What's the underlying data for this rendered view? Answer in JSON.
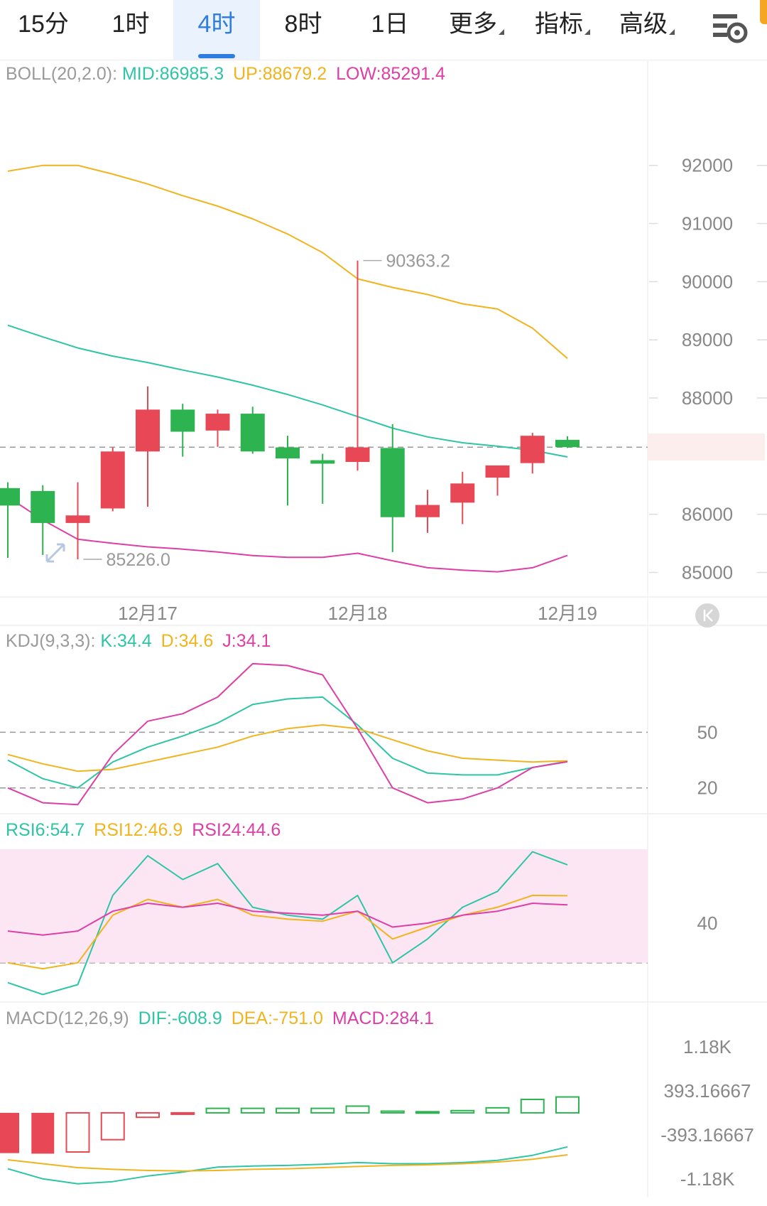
{
  "tabs": [
    {
      "label": "15分",
      "active": false,
      "dropdown": false
    },
    {
      "label": "1时",
      "active": false,
      "dropdown": false
    },
    {
      "label": "4时",
      "active": true,
      "dropdown": false
    },
    {
      "label": "8时",
      "active": false,
      "dropdown": false
    },
    {
      "label": "1日",
      "active": false,
      "dropdown": false
    },
    {
      "label": "更多",
      "active": false,
      "dropdown": true
    },
    {
      "label": "指标",
      "active": false,
      "dropdown": true
    },
    {
      "label": "高级",
      "active": false,
      "dropdown": true
    }
  ],
  "settings_icon": "chart-settings-icon",
  "colors": {
    "up": "#e84855",
    "down": "#2db451",
    "mid": "#2ec5a5",
    "upper": "#f0b41e",
    "lower": "#dd3fa6",
    "accent": "#2f7de1",
    "rsi_band": "#fde6f3",
    "axis_text": "#888888"
  },
  "legends": {
    "boll": {
      "name": "BOLL(20,2.0):",
      "mid": "MID:86985.3",
      "up": "UP:88679.2",
      "low": "LOW:85291.4"
    },
    "kdj": {
      "name": "KDJ(9,3,3):",
      "k": "K:34.4",
      "d": "D:34.6",
      "j": "J:34.1"
    },
    "rsi": {
      "r6": "RSI6:54.7",
      "r12": "RSI12:46.9",
      "r24": "RSI24:44.6"
    },
    "macd": {
      "name": "MACD(12,26,9)",
      "dif": "DIF:-608.9",
      "dea": "DEA:-751.0",
      "macd": "MACD:284.1"
    }
  },
  "chart_data": [
    {
      "type": "candlestick",
      "title": "BOLL(20,2.0)",
      "interval": "4时",
      "ylim": [
        84700,
        93500
      ],
      "y_ticks": [
        92000,
        91000,
        90000,
        89000,
        88000,
        86000,
        85000
      ],
      "x_ticks": [
        {
          "label": "12月17",
          "index": 4
        },
        {
          "label": "12月18",
          "index": 10
        },
        {
          "label": "12月19",
          "index": 16
        }
      ],
      "last_price": 87154.3,
      "annotations": [
        {
          "label": "90363.2",
          "index": 10,
          "value": 90363.2
        },
        {
          "label": "85226.0",
          "index": 2,
          "value": 85226.0
        }
      ],
      "candles": [
        {
          "o": 86450,
          "h": 86550,
          "l": 85250,
          "c": 86150
        },
        {
          "o": 86400,
          "h": 86500,
          "l": 85300,
          "c": 85850
        },
        {
          "o": 85850,
          "h": 86550,
          "l": 85226,
          "c": 85980
        },
        {
          "o": 86100,
          "h": 87150,
          "l": 86050,
          "c": 87080
        },
        {
          "o": 87080,
          "h": 88200,
          "l": 86130,
          "c": 87800
        },
        {
          "o": 87800,
          "h": 87900,
          "l": 86990,
          "c": 87420
        },
        {
          "o": 87440,
          "h": 87800,
          "l": 87160,
          "c": 87730
        },
        {
          "o": 87730,
          "h": 87850,
          "l": 87040,
          "c": 87080
        },
        {
          "o": 87150,
          "h": 87350,
          "l": 86150,
          "c": 86960
        },
        {
          "o": 86930,
          "h": 87040,
          "l": 86180,
          "c": 86870
        },
        {
          "o": 86900,
          "h": 90363.2,
          "l": 86750,
          "c": 87150
        },
        {
          "o": 87140,
          "h": 87550,
          "l": 85350,
          "c": 85950
        },
        {
          "o": 85950,
          "h": 86420,
          "l": 85680,
          "c": 86160
        },
        {
          "o": 86200,
          "h": 86730,
          "l": 85830,
          "c": 86530
        },
        {
          "o": 86630,
          "h": 86820,
          "l": 86320,
          "c": 86840
        },
        {
          "o": 86880,
          "h": 87400,
          "l": 86700,
          "c": 87350
        },
        {
          "o": 87280,
          "h": 87340,
          "l": 87140,
          "c": 87154.3
        }
      ],
      "boll_up": [
        91900,
        92000,
        92000,
        91850,
        91680,
        91480,
        91300,
        91080,
        90820,
        90500,
        90050,
        89900,
        89780,
        89620,
        89530,
        89200,
        88679.2
      ],
      "boll_mid": [
        89250,
        89050,
        88860,
        88720,
        88610,
        88480,
        88360,
        88220,
        88060,
        87880,
        87680,
        87480,
        87330,
        87230,
        87170,
        87100,
        86985.3
      ],
      "boll_low": [
        86300,
        85900,
        85570,
        85500,
        85440,
        85400,
        85350,
        85290,
        85260,
        85260,
        85330,
        85200,
        85080,
        85040,
        85010,
        85080,
        85291.4
      ]
    },
    {
      "type": "line",
      "title": "KDJ(9,3,3)",
      "ylim": [
        8,
        100
      ],
      "y_ticks": [
        50,
        20
      ],
      "dashed_levels": [
        50,
        20
      ],
      "series": [
        {
          "name": "K",
          "values": [
            35,
            25,
            20,
            34,
            42,
            48,
            55,
            65,
            68,
            69,
            54,
            36,
            28,
            27,
            27,
            31,
            34.4
          ]
        },
        {
          "name": "D",
          "values": [
            38,
            33,
            29,
            30,
            34,
            38,
            42,
            48,
            52,
            54,
            52,
            46,
            40,
            36,
            35,
            34,
            34.6
          ]
        },
        {
          "name": "J",
          "values": [
            20,
            12,
            11,
            38,
            56,
            60,
            69,
            87,
            86,
            81,
            52,
            20,
            12,
            14,
            20,
            31,
            34.1
          ]
        }
      ]
    },
    {
      "type": "line",
      "title": "RSI",
      "ylim": [
        21,
        64
      ],
      "y_ticks": [
        40
      ],
      "dashed_levels": [
        30
      ],
      "band": [
        30,
        70
      ],
      "series": [
        {
          "name": "RSI6",
          "values": [
            25,
            22,
            24.5,
            47,
            57,
            51,
            55,
            44,
            42,
            41,
            47,
            30,
            36,
            44,
            48,
            58,
            54.7
          ]
        },
        {
          "name": "RSI12",
          "values": [
            30,
            28.5,
            30,
            42,
            46,
            44,
            46,
            42,
            41,
            40.5,
            43,
            36,
            39,
            42,
            44,
            47,
            46.9
          ]
        },
        {
          "name": "RSI24",
          "values": [
            38,
            37,
            38,
            43,
            45,
            44,
            45,
            43,
            42.5,
            42,
            43,
            39,
            40,
            42,
            43,
            45,
            44.6
          ]
        }
      ]
    },
    {
      "type": "bar",
      "title": "MACD(12,26,9)",
      "ylim": [
        -1450,
        1600
      ],
      "y_ticks": [
        "1.18K",
        "393.16667",
        "-393.16667",
        "-1.18K"
      ],
      "y_tick_values": [
        1180,
        393.16667,
        -393.16667,
        -1180
      ],
      "histogram": [
        -720,
        -730,
        -700,
        -480,
        -80,
        -10,
        80,
        80,
        80,
        80,
        120,
        30,
        20,
        40,
        90,
        240,
        284.1
      ],
      "series": [
        {
          "name": "DIF",
          "values": [
            -1000,
            -1180,
            -1270,
            -1230,
            -1130,
            -1060,
            -970,
            -950,
            -940,
            -920,
            -890,
            -910,
            -910,
            -890,
            -850,
            -760,
            -608.9
          ]
        },
        {
          "name": "DEA",
          "values": [
            -840,
            -910,
            -980,
            -1010,
            -1030,
            -1040,
            -1030,
            -1010,
            -1000,
            -980,
            -960,
            -940,
            -930,
            -910,
            -880,
            -830,
            -751.0
          ]
        }
      ]
    }
  ]
}
